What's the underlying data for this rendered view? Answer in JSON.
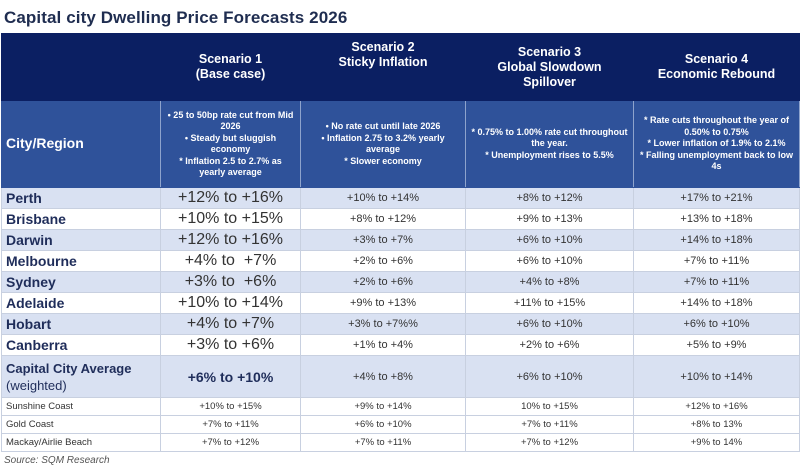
{
  "title": "Capital city Dwelling Price Forecasts 2026",
  "header": {
    "region_label": "City/Region",
    "scenarios": [
      {
        "name": "Scenario 1",
        "subtitle": "(Base case)",
        "assumptions": [
          "• 25 to 50bp rate cut from Mid 2026",
          "• Steady but sluggish economy",
          "* Inflation 2.5 to 2.7% as yearly average"
        ]
      },
      {
        "name": "Scenario 2",
        "subtitle": "Sticky Inflation",
        "assumptions": [
          "• No rate cut until late 2026",
          "• Inflation 2.75 to 3.2% yearly average",
          "* Slower economy"
        ]
      },
      {
        "name": "Scenario 3",
        "subtitle": "Global Slowdown Spillover",
        "assumptions": [
          "* 0.75% to 1.00% rate cut throughout the year.",
          "* Unemployment rises to 5.5%"
        ]
      },
      {
        "name": "Scenario 4",
        "subtitle": "Economic Rebound",
        "assumptions": [
          "* Rate cuts throughout the year of 0.50% to 0.75%",
          "* Lower inflation of 1.9% to 2.1%",
          "* Falling unemployment back to low 4s"
        ]
      }
    ]
  },
  "capital_rows": [
    {
      "region": "Perth",
      "values": [
        "+12% to +16%",
        "+10% to +14%",
        "+8% to +12%",
        "+17% to +21%"
      ]
    },
    {
      "region": "Brisbane",
      "values": [
        "+10% to +15%",
        "+8% to +12%",
        "+9% to +13%",
        "+13% to +18%"
      ]
    },
    {
      "region": "Darwin",
      "values": [
        "+12% to +16%",
        "+3% to +7%",
        "+6% to +10%",
        "+14% to +18%"
      ]
    },
    {
      "region": "Melbourne",
      "values": [
        "+4% to  +7%",
        "+2% to +6%",
        "+6% to +10%",
        "+7% to +11%"
      ]
    },
    {
      "region": "Sydney",
      "values": [
        "+3% to  +6%",
        "+2% to +6%",
        "+4% to +8%",
        "+7% to +11%"
      ]
    },
    {
      "region": "Adelaide",
      "values": [
        "+10% to +14%",
        "+9% to +13%",
        "+11% to +15%",
        "+14% to +18%"
      ]
    },
    {
      "region": "Hobart",
      "values": [
        "+4% to +7%",
        "+3% to +7%%",
        "+6% to +10%",
        "+6% to +10%"
      ]
    },
    {
      "region": "Canberra",
      "values": [
        "+3% to +6%",
        "+1% to +4%",
        "+2% to +6%",
        "+5% to +9%"
      ]
    }
  ],
  "average_row": {
    "region": "Capital City Average",
    "region_note": "(weighted)",
    "values": [
      "+6% to +10%",
      "+4% to +8%",
      "+6% to +10%",
      "+10% to +14%"
    ]
  },
  "regional_rows": [
    {
      "region": "Sunshine Coast",
      "values": [
        "+10% to +15%",
        "+9% to +14%",
        "10% to +15%",
        "+12% to +16%"
      ]
    },
    {
      "region": "Gold Coast",
      "values": [
        "+7% to +11%",
        "+6% to +10%",
        "+7% to +11%",
        "+8% to 13%"
      ]
    },
    {
      "region": "Mackay/Airlie Beach",
      "values": [
        "+7% to +12%",
        "+7% to +11%",
        "+7% to +12%",
        "+9% to 14%"
      ]
    }
  ],
  "source": "Source: SQM Research",
  "colors": {
    "header": "#0b1f62",
    "assumptions": "#2f529a",
    "alt_row": "#d9e1f2",
    "title": "#1f2d50"
  }
}
